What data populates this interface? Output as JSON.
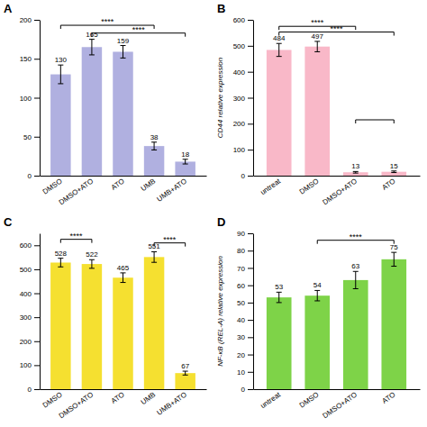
{
  "chart_data": [
    {
      "type": "bar",
      "title": "A",
      "categories": [
        "DMSO",
        "DMSO+ATO",
        "ATO",
        "UMB",
        "UMB+ATO"
      ],
      "values": [
        130,
        165,
        159,
        38,
        18
      ],
      "errors": [
        12,
        10,
        8,
        5,
        3
      ],
      "color": "#b0b0e0",
      "ylim": [
        0,
        200
      ],
      "yticks": [
        0,
        50,
        100,
        150,
        200
      ],
      "data_labels": true,
      "annotations": [
        {
          "from": "DMSO",
          "to": "UMB",
          "y": 193,
          "label": "****"
        },
        {
          "from": "DMSO+ATO",
          "to": "UMB+ATO",
          "y": 183,
          "label": "****"
        }
      ]
    },
    {
      "type": "bar",
      "title": "B",
      "categories": [
        "untreat",
        "DMSO",
        "DMSO+ATO",
        "ATO"
      ],
      "values": [
        484,
        497,
        13,
        15
      ],
      "errors": [
        25,
        20,
        3,
        3
      ],
      "color": "#f9b8c8",
      "ylabel": "CD44 relative expression",
      "ylim": [
        0,
        600
      ],
      "yticks": [
        0,
        100,
        200,
        300,
        400,
        500,
        600
      ],
      "data_labels": true,
      "annotations": [
        {
          "from": "untreat",
          "to": "DMSO+ATO",
          "y": 575,
          "label": "****"
        },
        {
          "from": "untreat",
          "to": "ATO",
          "y": 553,
          "label": "****"
        },
        {
          "from": "DMSO+ATO",
          "to": "ATO",
          "y": 215
        }
      ]
    },
    {
      "type": "bar",
      "title": "C",
      "categories": [
        "DMSO",
        "DMSO+ATO",
        "ATO",
        "UMB",
        "UMB+ATO"
      ],
      "values": [
        528,
        522,
        465,
        551,
        67
      ],
      "errors": [
        18,
        18,
        20,
        22,
        8
      ],
      "color": "#f5e030",
      "ylim": [
        0,
        650
      ],
      "yticks": [
        0,
        100,
        200,
        300,
        400,
        500,
        600
      ],
      "data_labels": true,
      "annotations": [
        {
          "from": "DMSO",
          "to": "DMSO+ATO",
          "y": 625,
          "label": "****"
        },
        {
          "from": "UMB",
          "to": "UMB+ATO",
          "y": 610,
          "label": "****"
        }
      ]
    },
    {
      "type": "bar",
      "title": "D",
      "categories": [
        "untreat",
        "DMSO",
        "DMSO+ATO",
        "ATO"
      ],
      "values": [
        53,
        54,
        63,
        75
      ],
      "errors": [
        3,
        3,
        5,
        4
      ],
      "color": "#7ed348",
      "ylabel": "NF-κB (REL-A) relative expression",
      "ylim": [
        0,
        90
      ],
      "yticks": [
        0,
        10,
        20,
        30,
        40,
        50,
        60,
        70,
        80,
        90
      ],
      "data_labels": true,
      "annotations": [
        {
          "from": "DMSO",
          "to": "ATO",
          "y": 86,
          "label": "****"
        }
      ]
    }
  ]
}
